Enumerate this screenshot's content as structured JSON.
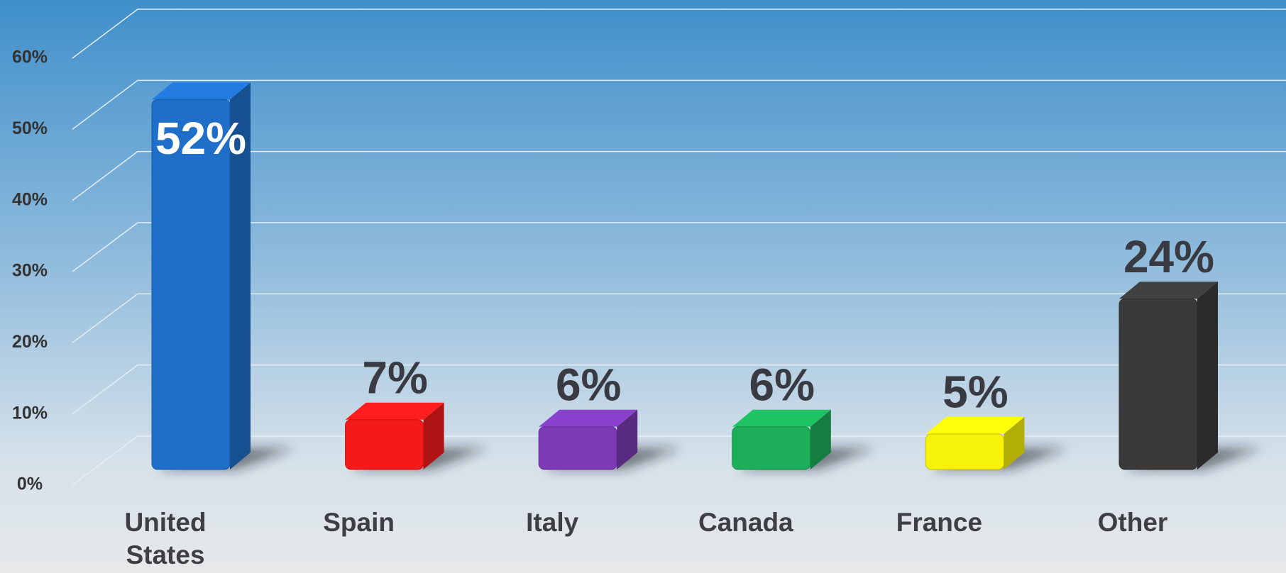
{
  "chart_data": {
    "type": "bar3d",
    "categories": [
      "United States",
      "Spain",
      "Italy",
      "Canada",
      "France",
      "Other"
    ],
    "values": [
      52,
      7,
      6,
      6,
      5,
      24
    ],
    "value_labels": [
      "52%",
      "7%",
      "6%",
      "6%",
      "5%",
      "24%"
    ],
    "colors": [
      "#1f6fc9",
      "#f51a1a",
      "#7a3bb5",
      "#1cae58",
      "#f7f20a",
      "#3a3a3a"
    ],
    "ylim": [
      0,
      60
    ],
    "yticks": [
      {
        "value": 0,
        "label": "0%"
      },
      {
        "value": 10,
        "label": "10%"
      },
      {
        "value": 20,
        "label": "20%"
      },
      {
        "value": 30,
        "label": "30%"
      },
      {
        "value": 40,
        "label": "40%"
      },
      {
        "value": 50,
        "label": "50%"
      },
      {
        "value": 60,
        "label": "60%"
      }
    ],
    "grid": true
  }
}
